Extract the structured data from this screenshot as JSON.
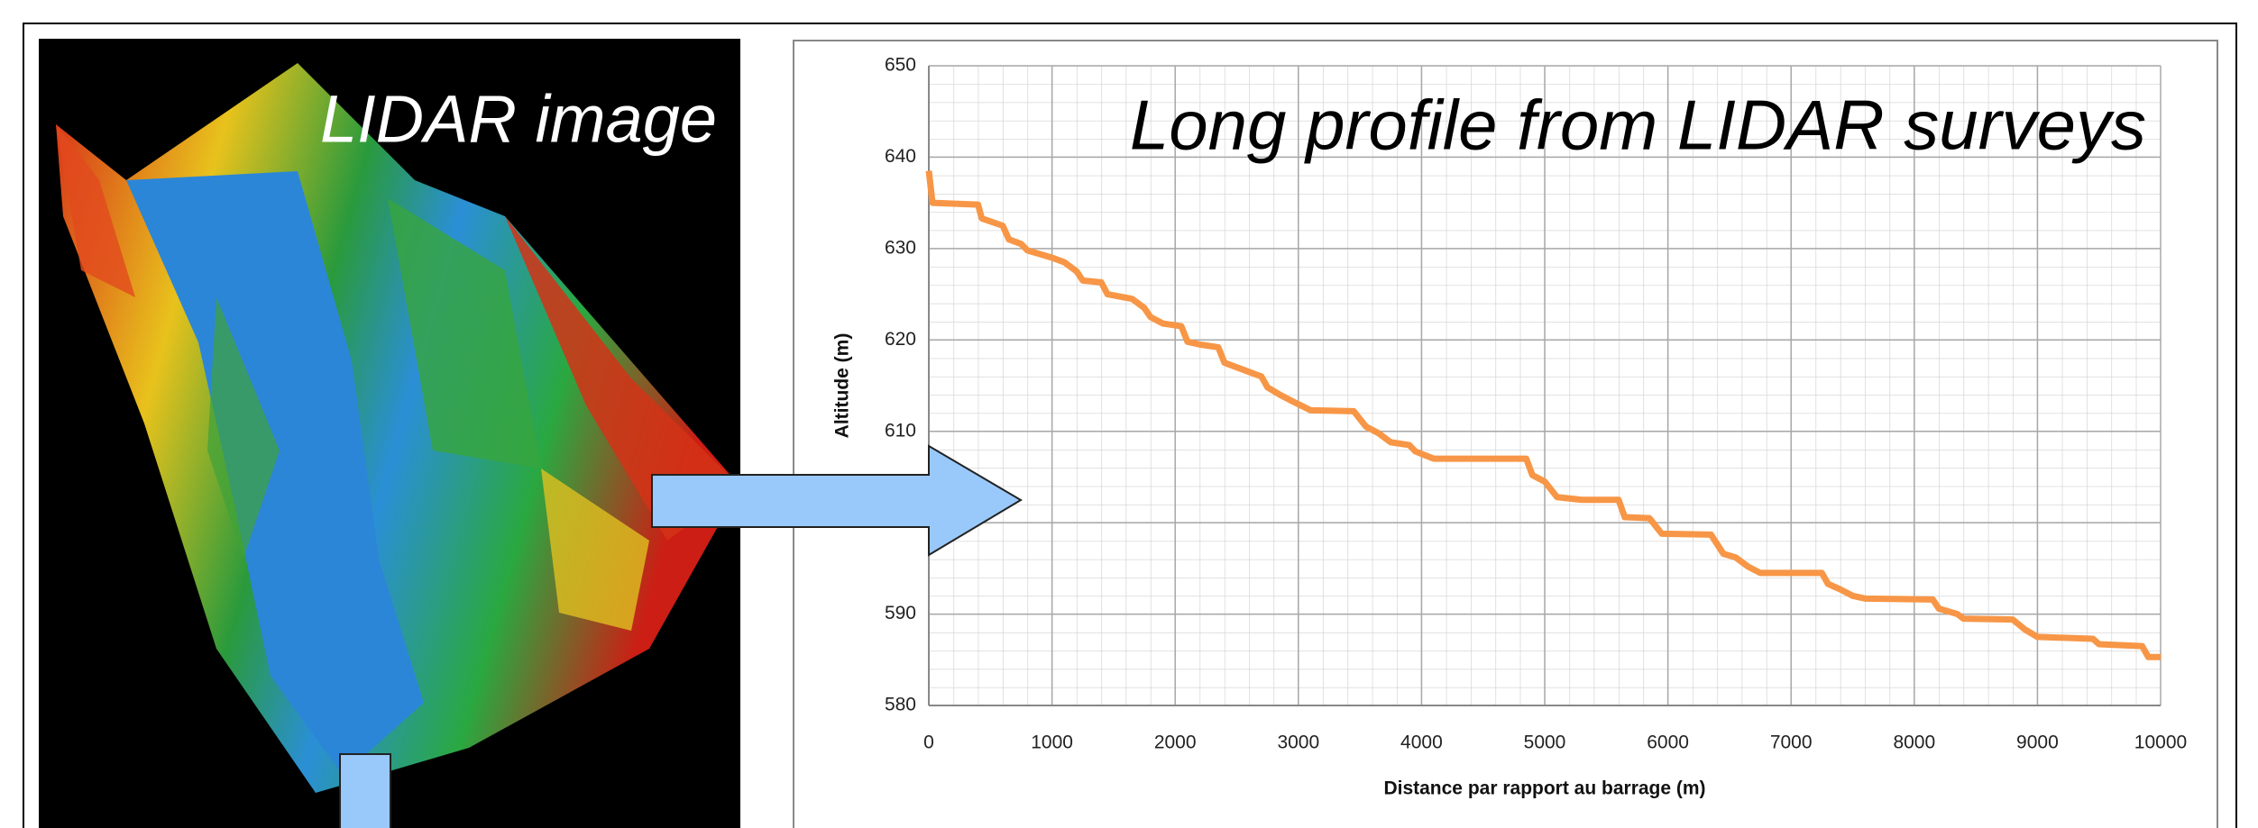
{
  "image_title": "LIDAR image",
  "chart_data": {
    "type": "line",
    "title": "Long profile from LIDAR surveys",
    "xlabel": "Distance par rapport au barrage (m)",
    "ylabel": "Altitude (m)",
    "x": [
      0,
      30,
      400,
      430,
      600,
      650,
      750,
      800,
      1000,
      1100,
      1200,
      1250,
      1400,
      1450,
      1650,
      1750,
      1800,
      1900,
      2050,
      2100,
      2200,
      2350,
      2400,
      2500,
      2600,
      2700,
      2750,
      2850,
      2950,
      3100,
      3450,
      3550,
      3650,
      3750,
      3900,
      3950,
      4100,
      4850,
      4900,
      5000,
      5100,
      5300,
      5600,
      5650,
      5850,
      5950,
      6350,
      6450,
      6550,
      6650,
      6750,
      7250,
      7300,
      7400,
      7500,
      7600,
      8150,
      8200,
      8350,
      8400,
      8800,
      8900,
      9000,
      9450,
      9500,
      9850,
      9900,
      10000
    ],
    "series": [
      {
        "color": "#f79646",
        "values": [
          638.5,
          635,
          634.8,
          633.3,
          632.5,
          631,
          630.5,
          629.8,
          629,
          628.5,
          627.5,
          626.5,
          626.3,
          625,
          624.5,
          623.5,
          622.5,
          621.8,
          621.5,
          619.8,
          619.5,
          619.2,
          617.5,
          617,
          616.5,
          616,
          614.8,
          614,
          613.3,
          612.3,
          612.2,
          610.5,
          609.8,
          608.8,
          608.5,
          607.8,
          607,
          607,
          605.2,
          604.5,
          602.8,
          602.5,
          602.5,
          600.6,
          600.5,
          598.8,
          598.7,
          596.6,
          596.2,
          595.2,
          594.5,
          594.5,
          593.3,
          592.7,
          592,
          591.7,
          591.6,
          590.6,
          590,
          589.5,
          589.4,
          588.3,
          587.5,
          587.3,
          586.7,
          586.5,
          585.3,
          585.3
        ]
      }
    ],
    "xlim": [
      0,
      10000
    ],
    "ylim": [
      580,
      650
    ],
    "xticks": [
      0,
      1000,
      2000,
      3000,
      4000,
      5000,
      6000,
      7000,
      8000,
      9000,
      10000
    ],
    "yticks": [
      580,
      590,
      600,
      610,
      620,
      630,
      640,
      650
    ],
    "grid": true
  }
}
